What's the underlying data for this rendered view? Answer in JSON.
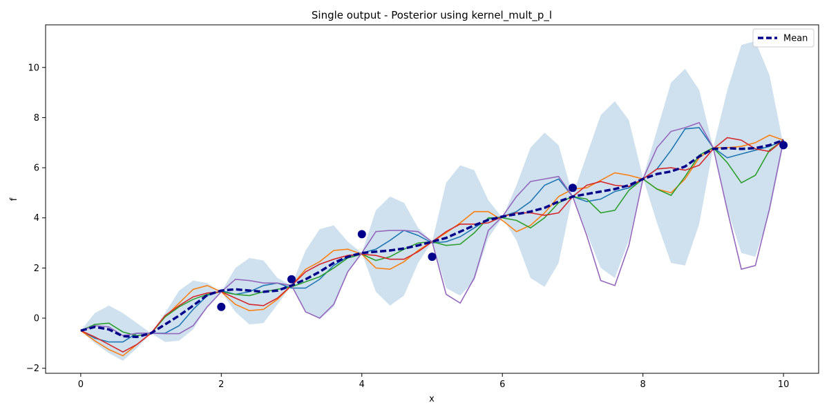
{
  "chart_data": {
    "type": "line",
    "title": "Single output - Posterior using kernel_mult_p_l",
    "xlabel": "x",
    "ylabel": "f",
    "xlim": [
      -0.5,
      10.5
    ],
    "ylim": [
      -2.2,
      11.7
    ],
    "xticks": [
      0,
      2,
      4,
      6,
      8,
      10
    ],
    "yticks": [
      -2,
      0,
      2,
      4,
      6,
      8,
      10
    ],
    "grid": false,
    "legend": {
      "position": "top-right",
      "entries": [
        "Mean"
      ]
    },
    "x": [
      0,
      0.2,
      0.4,
      0.6,
      0.8,
      1.0,
      1.2,
      1.4,
      1.6,
      1.8,
      2.0,
      2.2,
      2.4,
      2.6,
      2.8,
      3.0,
      3.2,
      3.4,
      3.6,
      3.8,
      4.0,
      4.2,
      4.4,
      4.6,
      4.8,
      5.0,
      5.2,
      5.4,
      5.6,
      5.8,
      6.0,
      6.2,
      6.4,
      6.6,
      6.8,
      7.0,
      7.2,
      7.4,
      7.6,
      7.8,
      8.0,
      8.2,
      8.4,
      8.6,
      8.8,
      9.0,
      9.2,
      9.4,
      9.6,
      9.8,
      10.0
    ],
    "band": {
      "upper": [
        -0.5,
        0.2,
        0.5,
        0.2,
        -0.2,
        -0.6,
        0.2,
        1.1,
        1.5,
        1.4,
        1.05,
        2.0,
        2.4,
        2.3,
        1.6,
        1.3,
        2.7,
        3.55,
        3.7,
        3.05,
        2.6,
        4.3,
        4.85,
        4.6,
        3.6,
        3.05,
        5.4,
        6.1,
        5.9,
        4.7,
        4.0,
        5.3,
        6.8,
        7.4,
        6.9,
        4.9,
        6.5,
        8.1,
        8.65,
        7.9,
        5.6,
        7.5,
        9.4,
        9.95,
        9.1,
        6.8,
        9.1,
        10.9,
        11.05,
        9.7,
        6.9
      ],
      "lower": [
        -0.5,
        -1.0,
        -1.4,
        -1.7,
        -1.2,
        -0.6,
        -0.95,
        -0.9,
        -0.45,
        0.45,
        1.05,
        0.25,
        -0.25,
        -0.2,
        0.55,
        1.3,
        0.3,
        -0.05,
        0.45,
        1.85,
        2.6,
        1.05,
        0.5,
        0.9,
        2.2,
        3.05,
        1.2,
        0.9,
        1.5,
        3.2,
        4.0,
        3.1,
        1.6,
        1.25,
        2.2,
        4.9,
        3.4,
        2.0,
        1.6,
        3.1,
        5.6,
        3.8,
        2.2,
        2.1,
        3.75,
        6.8,
        4.35,
        2.6,
        2.45,
        4.2,
        6.9
      ]
    },
    "series": [
      {
        "name": "Mean",
        "values": [
          -0.5,
          -0.35,
          -0.45,
          -0.72,
          -0.75,
          -0.6,
          -0.25,
          0.1,
          0.5,
          0.92,
          1.1,
          1.15,
          1.1,
          1.05,
          1.1,
          1.3,
          1.55,
          1.85,
          2.2,
          2.45,
          2.6,
          2.65,
          2.7,
          2.78,
          2.9,
          3.05,
          3.2,
          3.45,
          3.7,
          3.92,
          4.05,
          4.15,
          4.25,
          4.4,
          4.65,
          4.85,
          4.95,
          5.05,
          5.15,
          5.3,
          5.55,
          5.75,
          5.85,
          6.05,
          6.45,
          6.75,
          6.78,
          6.75,
          6.78,
          6.9,
          7.1
        ]
      },
      {
        "values": [
          -0.5,
          -0.8,
          -0.95,
          -0.95,
          -0.6,
          -0.6,
          -0.6,
          -0.3,
          0.35,
          0.9,
          1.1,
          0.95,
          1.05,
          1.3,
          1.4,
          1.2,
          1.2,
          1.55,
          2.1,
          2.45,
          2.6,
          2.75,
          3.1,
          3.5,
          3.3,
          3.0,
          3.05,
          3.25,
          3.6,
          3.95,
          4.05,
          4.25,
          4.65,
          5.3,
          5.55,
          4.85,
          4.65,
          4.75,
          5.05,
          5.2,
          5.55,
          5.95,
          6.7,
          7.55,
          7.6,
          6.8,
          6.4,
          6.55,
          6.7,
          6.85,
          7.1
        ]
      },
      {
        "values": [
          -0.5,
          -0.9,
          -1.25,
          -1.5,
          -1.05,
          -0.6,
          0.05,
          0.6,
          1.15,
          1.3,
          1.05,
          0.55,
          0.3,
          0.35,
          0.75,
          1.3,
          1.95,
          2.25,
          2.7,
          2.75,
          2.55,
          2.0,
          1.95,
          2.25,
          2.7,
          3.05,
          3.4,
          3.8,
          4.25,
          4.25,
          3.9,
          3.45,
          3.7,
          4.2,
          4.85,
          5.15,
          5.2,
          5.5,
          5.8,
          5.7,
          5.55,
          5.15,
          5.0,
          5.55,
          6.4,
          6.8,
          6.8,
          6.85,
          7.0,
          7.3,
          7.1
        ]
      },
      {
        "values": [
          -0.5,
          -0.25,
          -0.2,
          -0.55,
          -0.7,
          -0.6,
          0.05,
          0.45,
          0.75,
          0.95,
          1.05,
          0.95,
          0.9,
          1.05,
          1.15,
          1.25,
          1.45,
          1.65,
          2.0,
          2.4,
          2.55,
          2.3,
          2.45,
          2.75,
          3.0,
          3.05,
          2.9,
          2.95,
          3.4,
          4.0,
          4.0,
          3.9,
          3.6,
          4.0,
          4.6,
          4.85,
          4.75,
          4.2,
          4.3,
          5.1,
          5.55,
          5.15,
          4.9,
          5.65,
          6.5,
          6.8,
          6.2,
          5.4,
          5.7,
          6.7,
          7.1
        ]
      },
      {
        "values": [
          -0.5,
          -0.75,
          -1.05,
          -1.35,
          -1.05,
          -0.6,
          0.1,
          0.5,
          0.85,
          1.0,
          1.05,
          0.8,
          0.55,
          0.5,
          0.8,
          1.3,
          1.85,
          2.15,
          2.35,
          2.5,
          2.55,
          2.5,
          2.35,
          2.35,
          2.65,
          3.05,
          3.45,
          3.75,
          3.75,
          3.8,
          4.05,
          4.2,
          4.2,
          4.1,
          4.2,
          4.85,
          5.3,
          5.45,
          5.3,
          5.25,
          5.55,
          5.95,
          6.0,
          5.9,
          6.1,
          6.75,
          7.2,
          7.1,
          6.75,
          6.65,
          7.1
        ]
      },
      {
        "values": [
          -0.5,
          -0.3,
          -0.35,
          -0.7,
          -0.6,
          -0.6,
          -0.62,
          -0.62,
          -0.3,
          0.45,
          1.05,
          1.55,
          1.5,
          1.4,
          1.4,
          1.3,
          0.25,
          0.0,
          0.55,
          1.85,
          2.6,
          3.45,
          3.5,
          3.5,
          3.45,
          3.05,
          0.95,
          0.6,
          1.6,
          3.5,
          4.05,
          4.85,
          5.45,
          5.55,
          5.65,
          4.85,
          3.3,
          1.5,
          1.3,
          2.9,
          5.55,
          6.8,
          7.45,
          7.6,
          7.8,
          6.8,
          4.3,
          1.95,
          2.1,
          4.35,
          7.1
        ]
      }
    ],
    "observations": {
      "x": [
        2,
        3,
        4,
        5,
        7,
        10
      ],
      "y": [
        0.45,
        1.55,
        3.35,
        2.45,
        5.2,
        6.9
      ]
    },
    "colors": {
      "band": "#cfe0ee",
      "mean": "#00008b",
      "samples": [
        "#1f77b4",
        "#ff7f0e",
        "#2ca02c",
        "#d62728",
        "#9467bd"
      ],
      "points": "#00008b"
    }
  }
}
